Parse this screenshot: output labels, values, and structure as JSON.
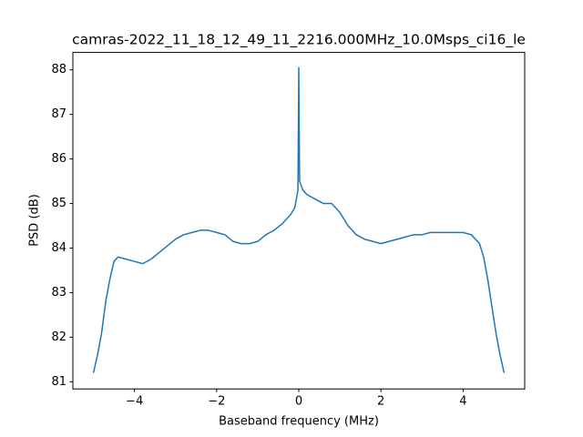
{
  "chart_data": {
    "type": "line",
    "title": "camras-2022_11_18_12_49_11_2216.000MHz_10.0Msps_ci16_le",
    "x_label": "Baseband frequency (MHz)",
    "y_label": "PSD (dB)",
    "x": [
      -5.0,
      -4.9,
      -4.8,
      -4.7,
      -4.6,
      -4.5,
      -4.4,
      -4.2,
      -4.0,
      -3.8,
      -3.6,
      -3.4,
      -3.2,
      -3.0,
      -2.8,
      -2.6,
      -2.4,
      -2.2,
      -2.0,
      -1.8,
      -1.6,
      -1.4,
      -1.2,
      -1.0,
      -0.8,
      -0.6,
      -0.4,
      -0.2,
      -0.1,
      -0.02,
      0,
      0.02,
      0.1,
      0.2,
      0.4,
      0.6,
      0.8,
      1.0,
      1.2,
      1.4,
      1.6,
      1.8,
      2.0,
      2.2,
      2.4,
      2.6,
      2.8,
      3.0,
      3.2,
      3.4,
      3.6,
      3.8,
      4.0,
      4.2,
      4.4,
      4.5,
      4.6,
      4.7,
      4.8,
      4.9,
      5.0
    ],
    "series": [
      {
        "name": "PSD",
        "color": "#1f77b4",
        "values": [
          81.2,
          81.6,
          82.1,
          82.8,
          83.3,
          83.7,
          83.8,
          83.75,
          83.7,
          83.65,
          83.75,
          83.9,
          84.05,
          84.2,
          84.3,
          84.35,
          84.4,
          84.4,
          84.35,
          84.3,
          84.15,
          84.1,
          84.1,
          84.15,
          84.3,
          84.4,
          84.55,
          84.75,
          84.9,
          85.3,
          88.05,
          85.5,
          85.3,
          85.2,
          85.1,
          85.0,
          85.0,
          84.8,
          84.5,
          84.3,
          84.2,
          84.15,
          84.1,
          84.15,
          84.2,
          84.25,
          84.3,
          84.3,
          84.35,
          84.35,
          84.35,
          84.35,
          84.35,
          84.3,
          84.1,
          83.8,
          83.3,
          82.7,
          82.1,
          81.6,
          81.2
        ]
      }
    ],
    "xlim": [
      -5.5,
      5.5
    ],
    "ylim": [
      80.84,
      88.39
    ],
    "xticks": [
      {
        "value": -4,
        "label": "−4"
      },
      {
        "value": -2,
        "label": "−2"
      },
      0,
      2,
      4
    ],
    "yticks": [
      81,
      82,
      83,
      84,
      85,
      86,
      87,
      88
    ],
    "grid": false
  }
}
